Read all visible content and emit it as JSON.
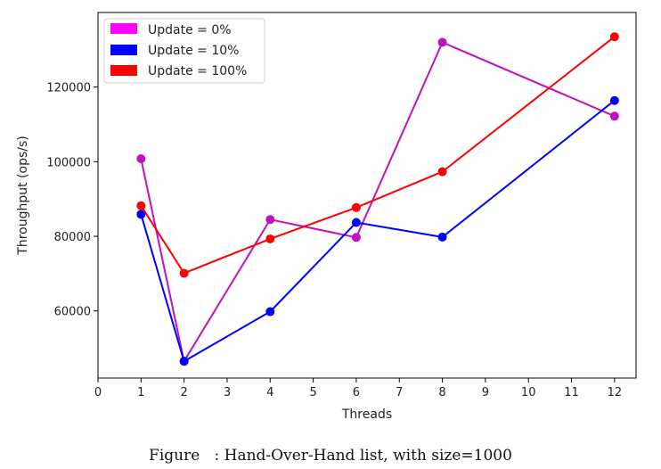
{
  "chart_data": {
    "type": "line",
    "title": "",
    "xlabel": "Threads",
    "ylabel": "Throughput (ops/s)",
    "xlim": [
      0,
      12.5
    ],
    "ylim": [
      42000,
      140000
    ],
    "xticks": [
      0,
      1,
      2,
      3,
      4,
      5,
      6,
      7,
      8,
      9,
      10,
      11,
      12
    ],
    "yticks": [
      60000,
      80000,
      100000,
      120000
    ],
    "grid": false,
    "legend_position": "top-left",
    "series": [
      {
        "name": "Update = 0%",
        "color": "#c010c0",
        "legend_color": "#ff00ff",
        "x": [
          1,
          2,
          4,
          6,
          8,
          12
        ],
        "y": [
          100800,
          46500,
          84500,
          79700,
          132000,
          112200
        ]
      },
      {
        "name": "Update = 10%",
        "color": "#0000ff",
        "legend_color": "#0000ff",
        "x": [
          1,
          2,
          4,
          6,
          8,
          12
        ],
        "y": [
          85900,
          46500,
          59800,
          83700,
          79800,
          116400
        ]
      },
      {
        "name": "Update = 100%",
        "color": "#ff0000",
        "legend_color": "#ff0000",
        "x": [
          1,
          2,
          4,
          6,
          8,
          12
        ],
        "y": [
          88200,
          70100,
          79300,
          87700,
          97300,
          133500
        ]
      }
    ]
  },
  "caption": "Figure   : Hand-Over-Hand list, with size=1000"
}
